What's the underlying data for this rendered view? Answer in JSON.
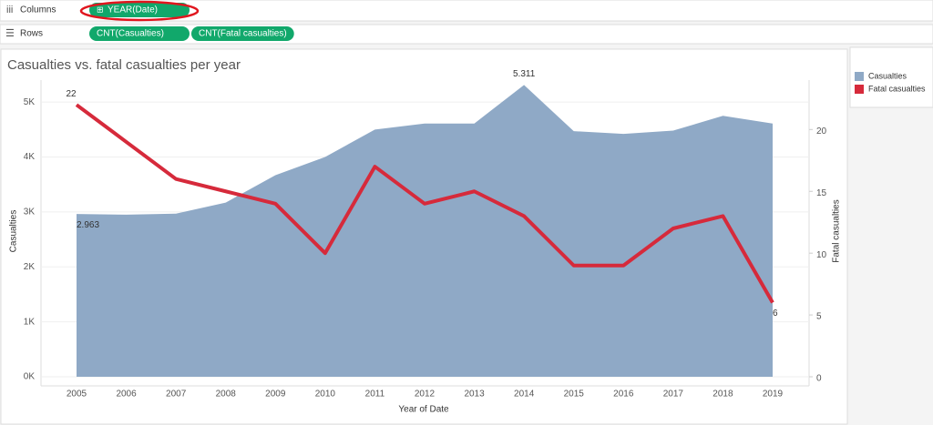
{
  "shelves": [
    {
      "label": "Columns",
      "pills": [
        "YEAR(Date)"
      ]
    },
    {
      "label": "Rows",
      "pills": [
        "CNT(Casualties)",
        "CNT(Fatal casualties)"
      ]
    }
  ],
  "chart_data": {
    "type": "combo",
    "title": "Casualties vs. fatal casualties per year",
    "x_label": "Year of Date",
    "y_label": "Casualties",
    "y2_label": "Fatal casualties",
    "categories": [
      "2005",
      "2006",
      "2007",
      "2008",
      "2009",
      "2010",
      "2011",
      "2012",
      "2013",
      "2014",
      "2015",
      "2016",
      "2017",
      "2018",
      "2019"
    ],
    "series": [
      {
        "name": "Casualties",
        "type": "area",
        "color": "#8fa9c6",
        "values": [
          2963,
          2950,
          2970,
          3170,
          3670,
          4000,
          4500,
          4610,
          4610,
          5311,
          4470,
          4420,
          4480,
          4750,
          4610
        ],
        "value_labels": [
          "2.963",
          null,
          null,
          null,
          null,
          null,
          null,
          null,
          null,
          "5.311",
          null,
          null,
          null,
          null,
          null
        ]
      },
      {
        "name": "Fatal casualties",
        "type": "line",
        "axis": "y2",
        "color": "#d62a3b",
        "values": [
          22,
          19,
          16,
          15,
          14,
          10,
          17,
          14,
          15,
          13,
          9,
          9,
          12,
          13,
          6
        ],
        "value_labels": [
          "22",
          null,
          null,
          null,
          null,
          null,
          null,
          null,
          null,
          null,
          null,
          null,
          null,
          null,
          "6"
        ]
      }
    ],
    "ylim": [
      0,
      5400
    ],
    "yticks": [
      {
        "value": 0,
        "label": "0K"
      },
      {
        "value": 1000,
        "label": "1K"
      },
      {
        "value": 2000,
        "label": "2K"
      },
      {
        "value": 3000,
        "label": "3K"
      },
      {
        "value": 4000,
        "label": "4K"
      },
      {
        "value": 5000,
        "label": "5K"
      }
    ],
    "y2lim": [
      0,
      24
    ],
    "y2ticks": [
      0,
      5,
      10,
      15,
      20
    ],
    "grid": true,
    "legend": "right"
  }
}
